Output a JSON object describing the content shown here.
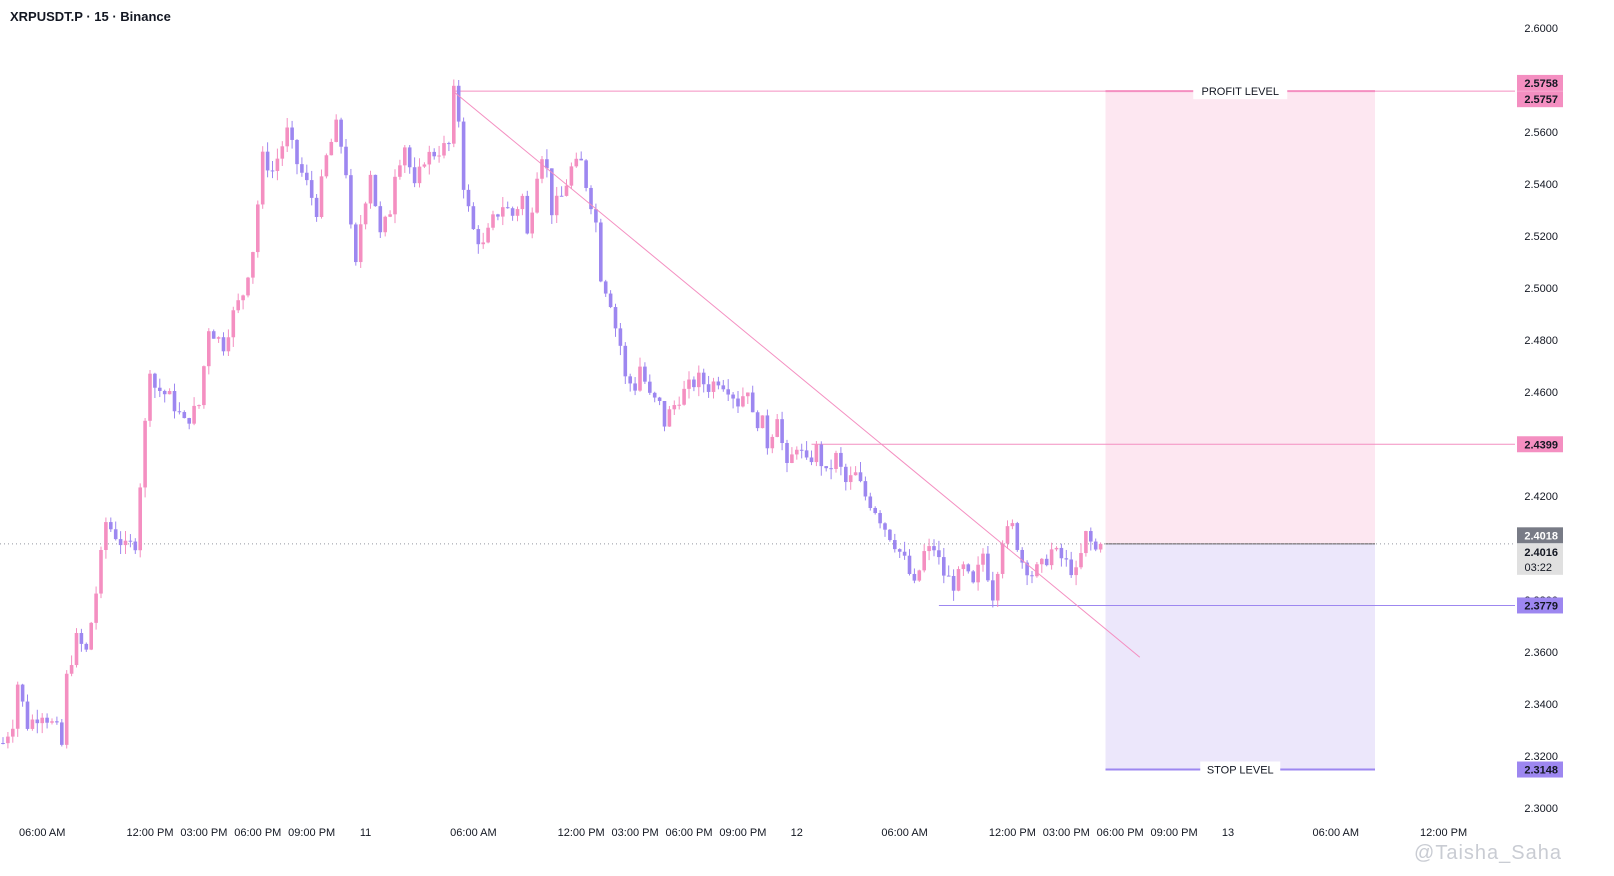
{
  "header": {
    "symbol": "XRPUSDT.P · 15 · Binance"
  },
  "watermark": "@Taisha_Saha",
  "colors": {
    "bull": "#f48fc1",
    "bear": "#9d87f0",
    "profit_zone": "#fde7f1",
    "stop_zone": "#ece7fb",
    "trendline": "#f48fc1",
    "profit_tag": "#f48fc1",
    "level_tag": "#f48fc1",
    "stop_tag": "#9d87f0",
    "last_tag": "#787b86",
    "price_tag": "#e0e0e0"
  },
  "chart_data": {
    "type": "candlestick",
    "title": "XRPUSDT.P · 15 · Binance",
    "interval": "15",
    "y_range": [
      2.3,
      2.61
    ],
    "y_ticks": [
      "2.6000",
      "2.5800",
      "2.5600",
      "2.5400",
      "2.5200",
      "2.5000",
      "2.4800",
      "2.4600",
      "2.4400",
      "2.4200",
      "2.4000",
      "2.3800",
      "2.3600",
      "2.3400",
      "2.3200",
      "2.3000"
    ],
    "x_ticks": [
      "06:00 AM",
      "12:00 PM",
      "03:00 PM",
      "06:00 PM",
      "09:00 PM",
      "11",
      "06:00 AM",
      "12:00 PM",
      "03:00 PM",
      "06:00 PM",
      "09:00 PM",
      "12",
      "06:00 AM",
      "12:00 PM",
      "03:00 PM",
      "06:00 PM",
      "09:00 PM",
      "13",
      "06:00 AM",
      "12:00 PM"
    ],
    "x_tick_bars": [
      8,
      30,
      41,
      52,
      63,
      74,
      96,
      118,
      129,
      140,
      151,
      162,
      184,
      206,
      217,
      228,
      239,
      250,
      272,
      294
    ],
    "bars_visible": 296,
    "price_path": [
      [
        0,
        2.325
      ],
      [
        2,
        2.333
      ],
      [
        3,
        2.348
      ],
      [
        5,
        2.332
      ],
      [
        8,
        2.337
      ],
      [
        11,
        2.33
      ],
      [
        12,
        2.324
      ],
      [
        13,
        2.35
      ],
      [
        15,
        2.365
      ],
      [
        17,
        2.36
      ],
      [
        19,
        2.383
      ],
      [
        21,
        2.41
      ],
      [
        23,
        2.405
      ],
      [
        25,
        2.4
      ],
      [
        27,
        2.402
      ],
      [
        28,
        2.425
      ],
      [
        30,
        2.47
      ],
      [
        31,
        2.462
      ],
      [
        34,
        2.458
      ],
      [
        37,
        2.448
      ],
      [
        40,
        2.455
      ],
      [
        42,
        2.485
      ],
      [
        45,
        2.478
      ],
      [
        47,
        2.49
      ],
      [
        49,
        2.498
      ],
      [
        51,
        2.515
      ],
      [
        53,
        2.55
      ],
      [
        55,
        2.545
      ],
      [
        58,
        2.56
      ],
      [
        60,
        2.548
      ],
      [
        62,
        2.54
      ],
      [
        64,
        2.53
      ],
      [
        66,
        2.55
      ],
      [
        68,
        2.562
      ],
      [
        69,
        2.555
      ],
      [
        70,
        2.545
      ],
      [
        71,
        2.522
      ],
      [
        72,
        2.508
      ],
      [
        73,
        2.525
      ],
      [
        75,
        2.545
      ],
      [
        77,
        2.52
      ],
      [
        79,
        2.53
      ],
      [
        80,
        2.545
      ],
      [
        82,
        2.555
      ],
      [
        84,
        2.538
      ],
      [
        86,
        2.55
      ],
      [
        89,
        2.553
      ],
      [
        91,
        2.555
      ],
      [
        92,
        2.575
      ],
      [
        93,
        2.565
      ],
      [
        94,
        2.54
      ],
      [
        95,
        2.53
      ],
      [
        96,
        2.522
      ],
      [
        98,
        2.516
      ],
      [
        100,
        2.526
      ],
      [
        102,
        2.532
      ],
      [
        104,
        2.528
      ],
      [
        106,
        2.535
      ],
      [
        107,
        2.52
      ],
      [
        108,
        2.532
      ],
      [
        109,
        2.545
      ],
      [
        110,
        2.552
      ],
      [
        111,
        2.545
      ],
      [
        112,
        2.53
      ],
      [
        114,
        2.535
      ],
      [
        116,
        2.546
      ],
      [
        118,
        2.548
      ],
      [
        119,
        2.54
      ],
      [
        120,
        2.533
      ],
      [
        121,
        2.525
      ],
      [
        122,
        2.505
      ],
      [
        124,
        2.495
      ],
      [
        125,
        2.485
      ],
      [
        126,
        2.478
      ],
      [
        127,
        2.465
      ],
      [
        129,
        2.462
      ],
      [
        130,
        2.47
      ],
      [
        132,
        2.458
      ],
      [
        134,
        2.455
      ],
      [
        135,
        2.448
      ],
      [
        136,
        2.452
      ],
      [
        138,
        2.458
      ],
      [
        140,
        2.462
      ],
      [
        142,
        2.465
      ],
      [
        144,
        2.462
      ],
      [
        146,
        2.465
      ],
      [
        148,
        2.462
      ],
      [
        150,
        2.456
      ],
      [
        152,
        2.462
      ],
      [
        153,
        2.45
      ],
      [
        155,
        2.448
      ],
      [
        156,
        2.44
      ],
      [
        157,
        2.445
      ],
      [
        158,
        2.452
      ],
      [
        159,
        2.44
      ],
      [
        160,
        2.43
      ],
      [
        162,
        2.44
      ],
      [
        164,
        2.432
      ],
      [
        166,
        2.438
      ],
      [
        168,
        2.428
      ],
      [
        170,
        2.435
      ],
      [
        172,
        2.425
      ],
      [
        174,
        2.428
      ],
      [
        176,
        2.42
      ],
      [
        178,
        2.415
      ],
      [
        180,
        2.408
      ],
      [
        182,
        2.402
      ],
      [
        184,
        2.395
      ],
      [
        186,
        2.385
      ],
      [
        188,
        2.398
      ],
      [
        190,
        2.4
      ],
      [
        192,
        2.39
      ],
      [
        194,
        2.386
      ],
      [
        196,
        2.392
      ],
      [
        198,
        2.385
      ],
      [
        200,
        2.398
      ],
      [
        202,
        2.382
      ],
      [
        204,
        2.404
      ],
      [
        206,
        2.408
      ],
      [
        208,
        2.395
      ],
      [
        210,
        2.39
      ],
      [
        212,
        2.393
      ],
      [
        214,
        2.399
      ],
      [
        216,
        2.396
      ],
      [
        218,
        2.392
      ],
      [
        219,
        2.39
      ],
      [
        220,
        2.397
      ],
      [
        221,
        2.405
      ],
      [
        222,
        2.402
      ],
      [
        223,
        2.399
      ],
      [
        224,
        2.4016
      ]
    ],
    "last_price": "2.4016",
    "countdown": "03:22",
    "price_labels": {
      "high": "2.5758",
      "profit": "2.5757",
      "level": "2.4399",
      "last_marker": "2.4018",
      "stop_low": "2.3779",
      "stop": "2.3148"
    },
    "levels": {
      "high": 2.5758,
      "profit": 2.5757,
      "level": 2.4399,
      "last_marker": 2.4018,
      "stop_low": 2.3779,
      "stop": 2.3148
    },
    "position": {
      "type": "long",
      "entry": 2.4016,
      "target": 2.5757,
      "stop": 2.3148,
      "start_bar": 225,
      "end_bar": 280,
      "profit_label": "PROFIT LEVEL",
      "stop_label": "STOP LEVEL"
    },
    "trendline": {
      "start": [
        92,
        2.5755
      ],
      "end": [
        232,
        2.358
      ]
    },
    "hline_level": {
      "start_bar": 165,
      "value": 2.4399
    },
    "hline_stop_low": {
      "start_bar": 191,
      "value": 2.3779
    },
    "hline_profit": {
      "start_bar": 92,
      "value": 2.5757
    }
  }
}
